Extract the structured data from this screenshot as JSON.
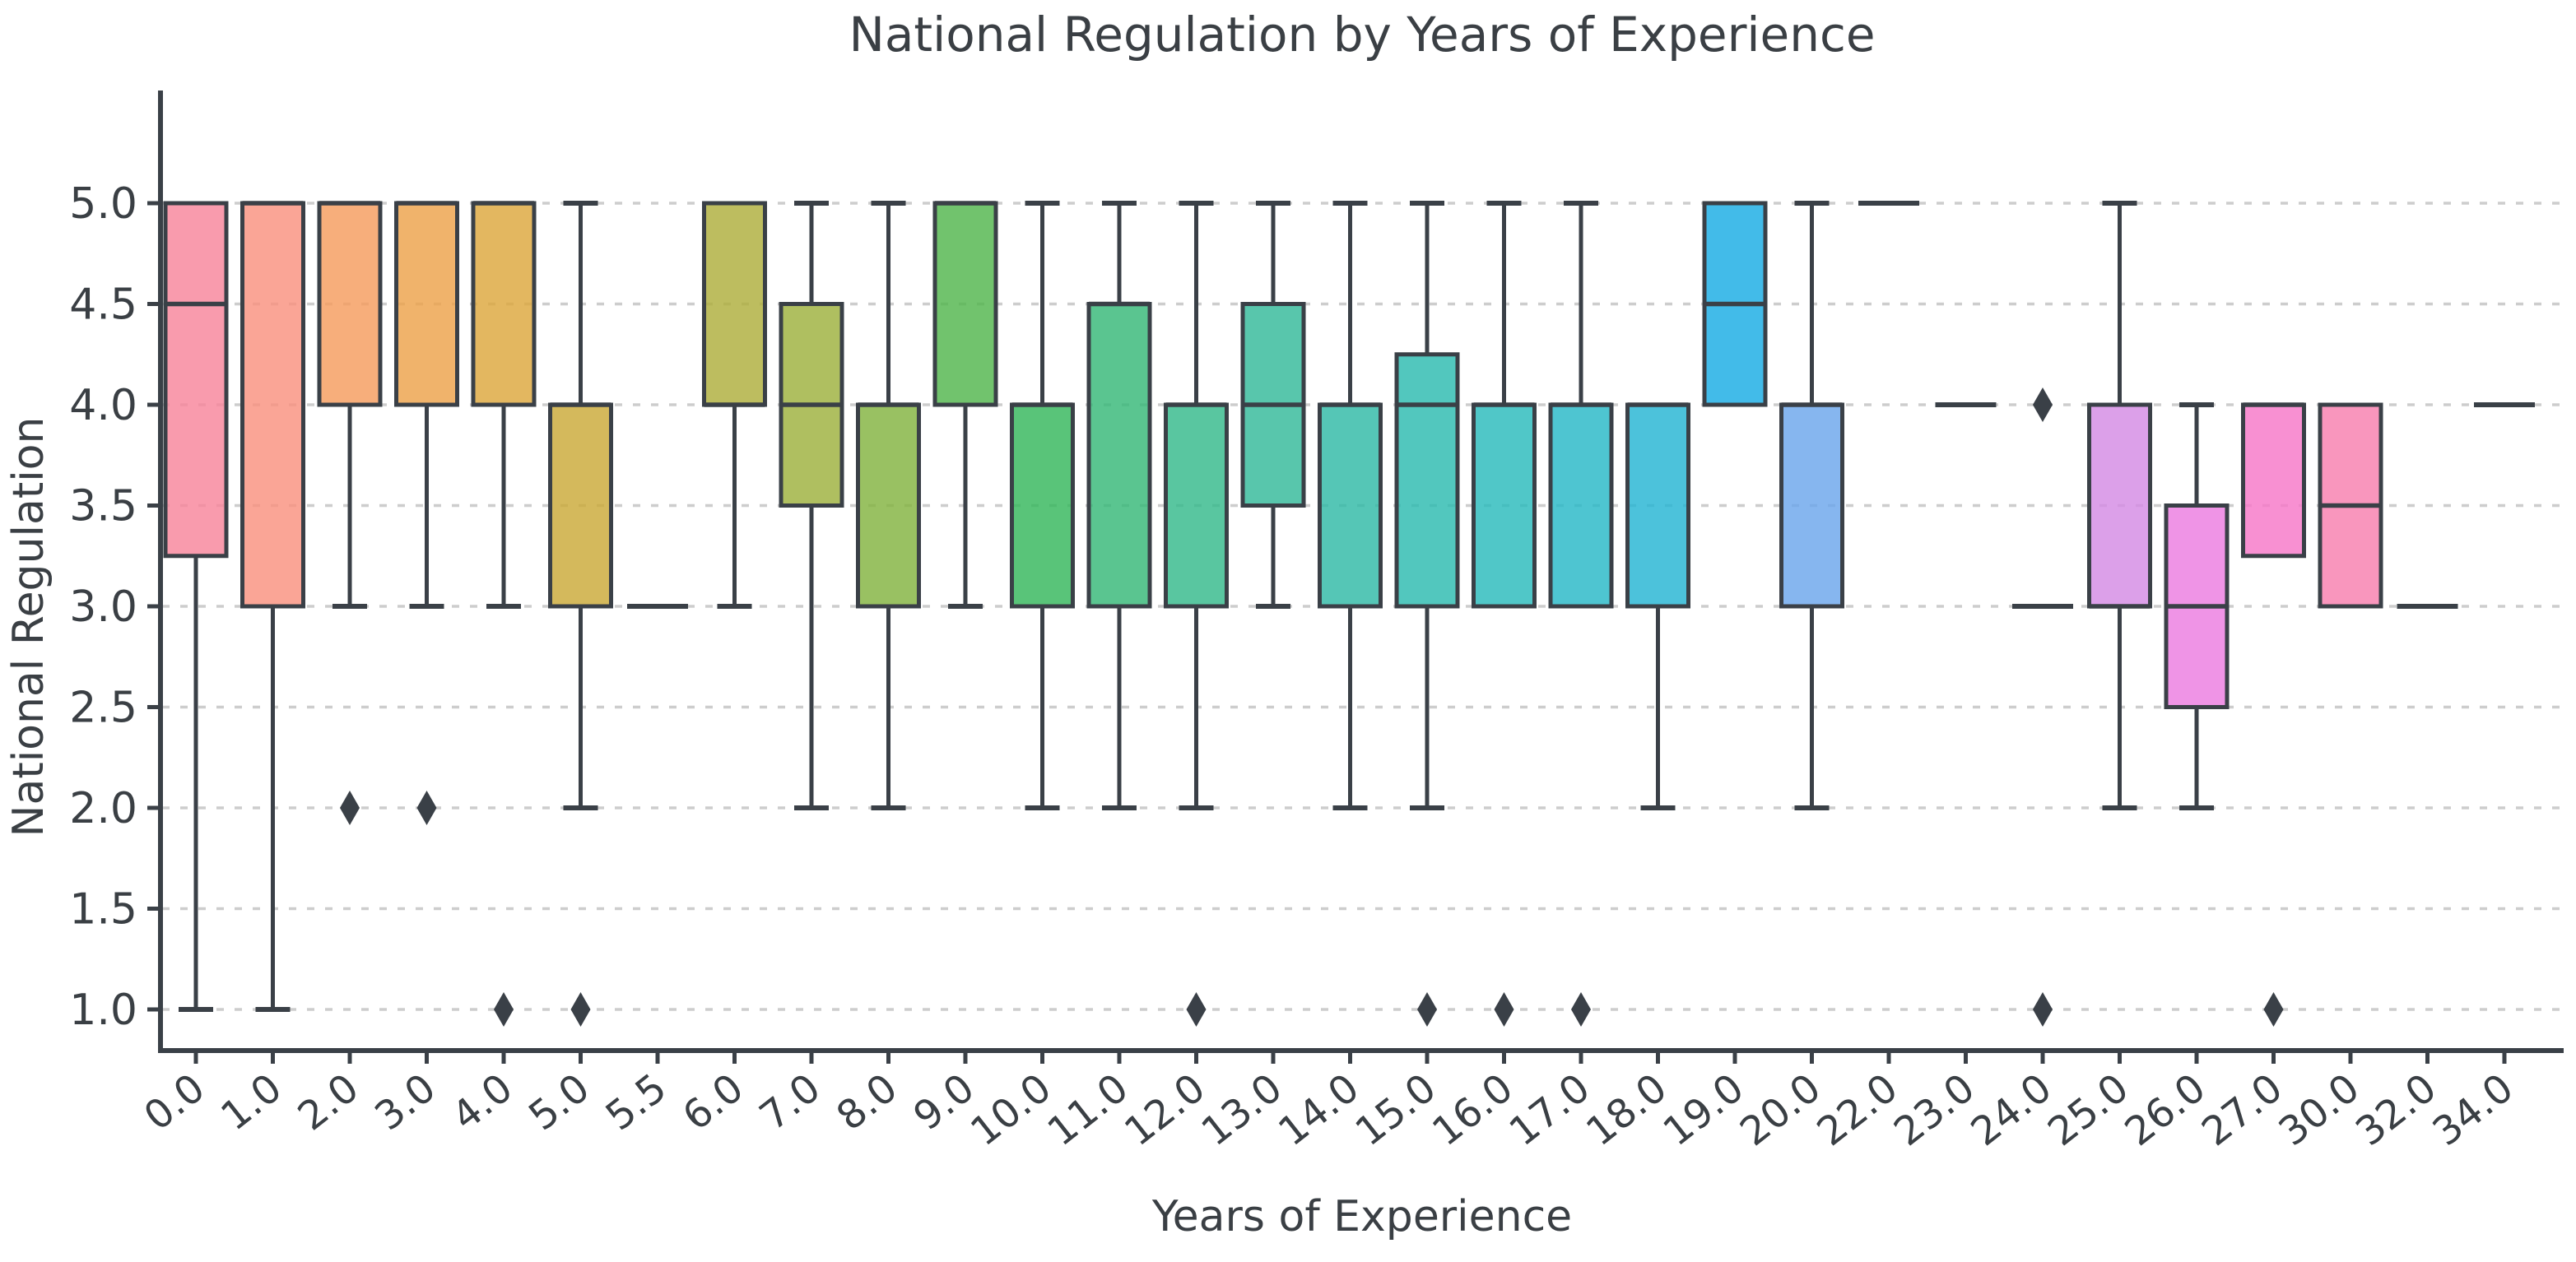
{
  "chart_data": {
    "type": "box",
    "title": "National Regulation by Years of Experience",
    "xlabel": "Years of Experience",
    "ylabel": "National Regulation",
    "ylim": [
      1.0,
      5.0
    ],
    "ytick_labels": [
      "1.0",
      "1.5",
      "2.0",
      "2.5",
      "3.0",
      "3.5",
      "4.0",
      "4.5",
      "5.0"
    ],
    "grid": "horizontal dashed, every 0.5",
    "legend_position": "none",
    "series": [
      {
        "label": "0.0",
        "q1": 3.25,
        "median": 4.5,
        "q3": 5.0,
        "whisker_low": 1.0,
        "whisker_high": 5.0,
        "outliers": [],
        "color": "#f8859b"
      },
      {
        "label": "1.0",
        "q1": 3.0,
        "median": 5.0,
        "q3": 5.0,
        "whisker_low": 1.0,
        "whisker_high": 5.0,
        "outliers": [],
        "color": "#f9917f"
      },
      {
        "label": "2.0",
        "q1": 4.0,
        "median": 5.0,
        "q3": 5.0,
        "whisker_low": 3.0,
        "whisker_high": 5.0,
        "outliers": [
          2.0
        ],
        "color": "#f59c5e"
      },
      {
        "label": "3.0",
        "q1": 4.0,
        "median": 5.0,
        "q3": 5.0,
        "whisker_low": 3.0,
        "whisker_high": 5.0,
        "outliers": [
          2.0
        ],
        "color": "#eda24b"
      },
      {
        "label": "4.0",
        "q1": 4.0,
        "median": 5.0,
        "q3": 5.0,
        "whisker_low": 3.0,
        "whisker_high": 5.0,
        "outliers": [
          1.0
        ],
        "color": "#dda73d"
      },
      {
        "label": "5.0",
        "q1": 3.0,
        "median": 4.0,
        "q3": 4.0,
        "whisker_low": 2.0,
        "whisker_high": 5.0,
        "outliers": [
          1.0
        ],
        "color": "#cbaa38"
      },
      {
        "label": "5.5",
        "q1": 3.0,
        "median": 3.0,
        "q3": 3.0,
        "whisker_low": 3.0,
        "whisker_high": 3.0,
        "outliers": [],
        "color": "#b5ac3a"
      },
      {
        "label": "6.0",
        "q1": 4.0,
        "median": 4.0,
        "q3": 5.0,
        "whisker_low": 3.0,
        "whisker_high": 5.0,
        "outliers": [],
        "color": "#aeae3c"
      },
      {
        "label": "7.0",
        "q1": 3.5,
        "median": 4.0,
        "q3": 4.5,
        "whisker_low": 2.0,
        "whisker_high": 5.0,
        "outliers": [],
        "color": "#9db13d"
      },
      {
        "label": "8.0",
        "q1": 3.0,
        "median": 4.0,
        "q3": 4.0,
        "whisker_low": 2.0,
        "whisker_high": 5.0,
        "outliers": [],
        "color": "#83b33f"
      },
      {
        "label": "9.0",
        "q1": 4.0,
        "median": 5.0,
        "q3": 5.0,
        "whisker_low": 3.0,
        "whisker_high": 5.0,
        "outliers": [],
        "color": "#52b64d"
      },
      {
        "label": "10.0",
        "q1": 3.0,
        "median": 4.0,
        "q3": 4.0,
        "whisker_low": 2.0,
        "whisker_high": 5.0,
        "outliers": [],
        "color": "#35b75c"
      },
      {
        "label": "11.0",
        "q1": 3.0,
        "median": 4.5,
        "q3": 4.5,
        "whisker_low": 2.0,
        "whisker_high": 5.0,
        "outliers": [],
        "color": "#36b877"
      },
      {
        "label": "12.0",
        "q1": 3.0,
        "median": 4.0,
        "q3": 4.0,
        "whisker_low": 2.0,
        "whisker_high": 5.0,
        "outliers": [
          1.0
        ],
        "color": "#35b98b"
      },
      {
        "label": "13.0",
        "q1": 3.5,
        "median": 4.0,
        "q3": 4.5,
        "whisker_low": 3.0,
        "whisker_high": 5.0,
        "outliers": [],
        "color": "#33ba9a"
      },
      {
        "label": "14.0",
        "q1": 3.0,
        "median": 4.0,
        "q3": 4.0,
        "whisker_low": 2.0,
        "whisker_high": 5.0,
        "outliers": [],
        "color": "#2fbaa6"
      },
      {
        "label": "15.0",
        "q1": 3.0,
        "median": 4.0,
        "q3": 4.25,
        "whisker_low": 2.0,
        "whisker_high": 5.0,
        "outliers": [
          1.0
        ],
        "color": "#2cbbb0"
      },
      {
        "label": "16.0",
        "q1": 3.0,
        "median": 4.0,
        "q3": 4.0,
        "whisker_low": 3.0,
        "whisker_high": 5.0,
        "outliers": [
          1.0
        ],
        "color": "#29bbbc"
      },
      {
        "label": "17.0",
        "q1": 3.0,
        "median": 4.0,
        "q3": 4.0,
        "whisker_low": 3.0,
        "whisker_high": 5.0,
        "outliers": [
          1.0
        ],
        "color": "#27b8c7"
      },
      {
        "label": "18.0",
        "q1": 3.0,
        "median": 4.0,
        "q3": 4.0,
        "whisker_low": 2.0,
        "whisker_high": 4.0,
        "outliers": [],
        "color": "#25b4d3"
      },
      {
        "label": "19.0",
        "q1": 4.0,
        "median": 4.5,
        "q3": 5.0,
        "whisker_low": 4.0,
        "whisker_high": 5.0,
        "outliers": [],
        "color": "#19ace4"
      },
      {
        "label": "20.0",
        "q1": 3.0,
        "median": 4.0,
        "q3": 4.0,
        "whisker_low": 2.0,
        "whisker_high": 5.0,
        "outliers": [],
        "color": "#6ba6ec"
      },
      {
        "label": "22.0",
        "q1": 5.0,
        "median": 5.0,
        "q3": 5.0,
        "whisker_low": 5.0,
        "whisker_high": 5.0,
        "outliers": [],
        "color": "#8f9ff1"
      },
      {
        "label": "23.0",
        "q1": 4.0,
        "median": 4.0,
        "q3": 4.0,
        "whisker_low": 4.0,
        "whisker_high": 4.0,
        "outliers": [],
        "color": "#b493f0"
      },
      {
        "label": "24.0",
        "q1": 3.0,
        "median": 3.0,
        "q3": 3.0,
        "whisker_low": 3.0,
        "whisker_high": 3.0,
        "outliers": [
          4.0,
          1.0
        ],
        "color": "#c88ce9"
      },
      {
        "label": "25.0",
        "q1": 3.0,
        "median": 3.0,
        "q3": 4.0,
        "whisker_low": 2.0,
        "whisker_high": 5.0,
        "outliers": [],
        "color": "#d48be4"
      },
      {
        "label": "26.0",
        "q1": 2.5,
        "median": 3.0,
        "q3": 3.5,
        "whisker_low": 2.0,
        "whisker_high": 4.0,
        "outliers": [],
        "color": "#ec7ce0"
      },
      {
        "label": "27.0",
        "q1": 3.25,
        "median": 4.0,
        "q3": 4.0,
        "whisker_low": 3.25,
        "whisker_high": 4.0,
        "outliers": [
          1.0
        ],
        "color": "#f678c8"
      },
      {
        "label": "30.0",
        "q1": 3.0,
        "median": 3.5,
        "q3": 4.0,
        "whisker_low": 3.0,
        "whisker_high": 4.0,
        "outliers": [],
        "color": "#f87fae"
      },
      {
        "label": "32.0",
        "q1": 3.0,
        "median": 3.0,
        "q3": 3.0,
        "whisker_low": 3.0,
        "whisker_high": 3.0,
        "outliers": [],
        "color": "#f8839c"
      },
      {
        "label": "34.0",
        "q1": 4.0,
        "median": 4.0,
        "q3": 4.0,
        "whisker_low": 4.0,
        "whisker_high": 4.0,
        "outliers": [],
        "color": "#f88a90"
      }
    ]
  },
  "styles": {
    "ink_color": "#3a4047",
    "text_color": "#3a3f44",
    "grid_color": "#cdcdcd",
    "background": "#ffffff"
  }
}
